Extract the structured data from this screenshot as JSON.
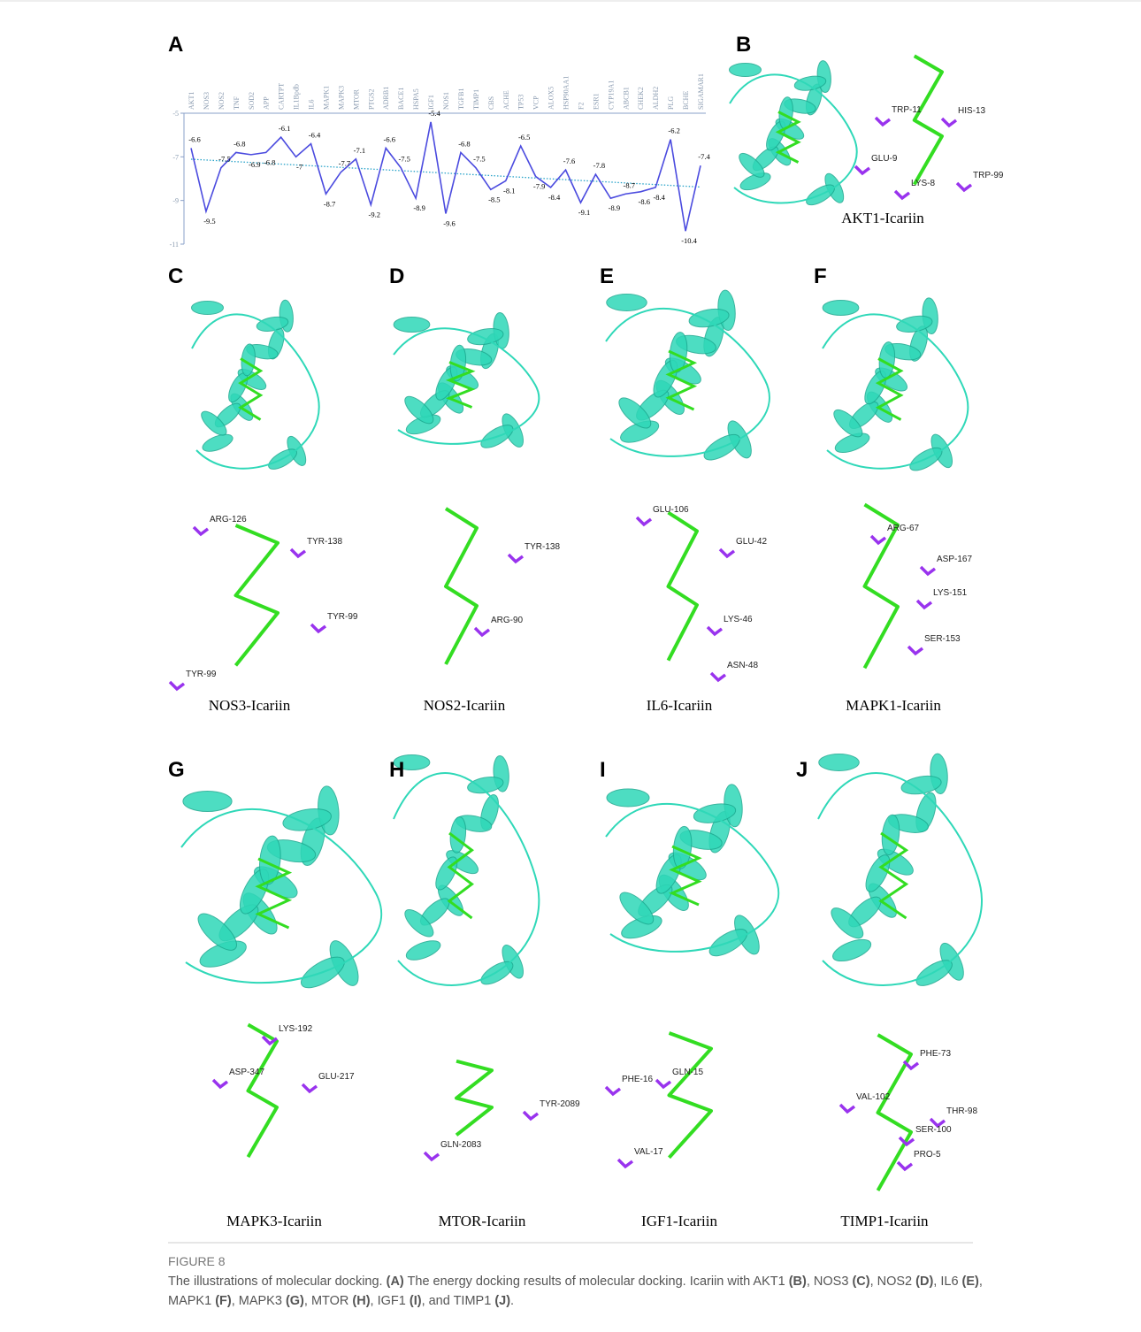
{
  "figure": {
    "label": "FIGURE 8",
    "caption": [
      [
        "The illustrations of molecular docking. ",
        "(A)",
        " The energy docking results of molecular docking. Icariin with AKT1 ",
        "(B)",
        ", NOS3 ",
        "(C)",
        ", NOS2 ",
        "(D)",
        ", IL6 ",
        "(E)",
        ","
      ],
      [
        "MAPK1 ",
        "(F)",
        ", MAPK3 ",
        "(G)",
        ", MTOR ",
        "(H)",
        ", IGF1 ",
        "(I)",
        ", and TIMP1 ",
        "(J)",
        "."
      ]
    ]
  },
  "chart_data": {
    "type": "line",
    "panel": "A",
    "categories": [
      "AKT1",
      "NOS3",
      "NOS2",
      "TNF",
      "SOD2",
      "APP",
      "CARTPT",
      "IL1Bpdb",
      "IL6",
      "MAPK1",
      "MAPK3",
      "MTOR",
      "PTGS2",
      "ADRB1",
      "BACE1",
      "HSPA5",
      "IGF1",
      "NOS1",
      "TGFB1",
      "TIMP1",
      "CBS",
      "ACHE",
      "TP53",
      "VCP",
      "ALOX5",
      "HSP90AA1",
      "F2",
      "ESR1",
      "CYP19A1",
      "ABCB1",
      "CHEK2",
      "ALDH2",
      "PLG",
      "BCHE",
      "SIGAMAR1"
    ],
    "values": [
      -6.6,
      -9.5,
      -7.5,
      -6.8,
      -6.9,
      -6.8,
      -6.1,
      -7,
      -6.4,
      -8.7,
      -7.7,
      -7.1,
      -9.2,
      -6.6,
      -7.5,
      -8.9,
      -5.4,
      -9.6,
      -6.8,
      -7.5,
      -8.5,
      -8.1,
      -6.5,
      -7.9,
      -8.4,
      -7.6,
      -9.1,
      -7.8,
      -8.9,
      -8.7,
      -8.6,
      -8.4,
      -6.2,
      -10.4,
      -7.4
    ],
    "color": "#4b4bdf",
    "trendline_color": "#29a3c9",
    "ylim": [
      -11,
      -5
    ],
    "yticks": [
      -5,
      -7,
      -9,
      -11
    ]
  },
  "panels": [
    {
      "label": "B",
      "caption": "AKT1-Icariin",
      "residues": [
        "TRP-11",
        "HIS-13",
        "GLU-9",
        "LYS-8",
        "TRP-99"
      ]
    },
    {
      "label": "C",
      "caption": "NOS3-Icariin",
      "residues": [
        "ARG-126",
        "TYR-138",
        "TYR-99",
        "TYR-99"
      ]
    },
    {
      "label": "D",
      "caption": "NOS2-Icariin",
      "residues": [
        "TYR-138",
        "ARG-90"
      ]
    },
    {
      "label": "E",
      "caption": "IL6-Icariin",
      "residues": [
        "GLU-106",
        "GLU-42",
        "LYS-46",
        "ASN-48"
      ]
    },
    {
      "label": "F",
      "caption": "MAPK1-Icariin",
      "residues": [
        "ARG-67",
        "ASP-167",
        "LYS-151",
        "SER-153"
      ]
    },
    {
      "label": "G",
      "caption": "MAPK3-Icariin",
      "residues": [
        "LYS-192",
        "ASP-347",
        "GLU-217"
      ]
    },
    {
      "label": "H",
      "caption": "MTOR-Icariin",
      "residues": [
        "GLN-2083",
        "TYR-2089"
      ]
    },
    {
      "label": "I",
      "caption": "IGF1-Icariin",
      "residues": [
        "GLN-15",
        "PHE-16",
        "VAL-17"
      ]
    },
    {
      "label": "J",
      "caption": "TIMP1-Icariin",
      "residues": [
        "PHE-73",
        "VAL-102",
        "THR-98",
        "SER-100",
        "PRO-5"
      ]
    }
  ]
}
